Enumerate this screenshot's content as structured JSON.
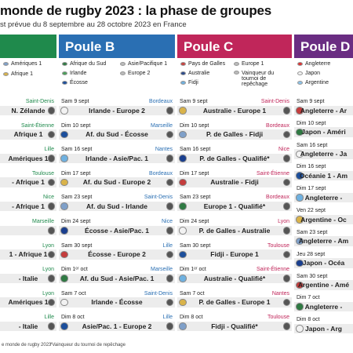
{
  "title": "monde de rugby 2023 : la phase de groupes",
  "subtitle": "st prévue du 8 septembre au 28 octobre 2023 en France",
  "pools": [
    {
      "label": "",
      "color": "#1f8a4c",
      "teams": [
        "Amériques 1",
        "Afrique 1"
      ]
    },
    {
      "label": "Poule B",
      "color": "#2a6fb3",
      "teams": [
        "Afrique du Sud",
        "Asie/Pacifique 1",
        "Irlande",
        "Europe 2",
        "Écosse"
      ]
    },
    {
      "label": "Poule C",
      "color": "#c0265a",
      "teams": [
        "Pays de Galles",
        "Europe 1",
        "Australie",
        "Vainqueur du tournoi de repêchage",
        "Fidji"
      ]
    },
    {
      "label": "Poule D",
      "color": "#6a2d82",
      "teams": [
        "Angleterre",
        "Japon",
        "Argentine"
      ]
    }
  ],
  "columns": [
    {
      "accent": "#1f8a4c",
      "matches": [
        {
          "date": "",
          "venue": "Saint-Denis",
          "label": "N. Zélande"
        },
        {
          "date": "",
          "venue": "Saint-Étienne",
          "label": "Afrique 1"
        },
        {
          "date": "",
          "venue": "Lille",
          "label": "Amériques 1"
        },
        {
          "date": "",
          "venue": "Toulouse",
          "label": "- Afrique 1"
        },
        {
          "date": "",
          "venue": "Nice",
          "label": "- Afrique 1"
        },
        {
          "date": "",
          "venue": "Marseille",
          "label": ""
        },
        {
          "date": "",
          "venue": "Lyon",
          "label": "1 - Afrique 1"
        },
        {
          "date": "",
          "venue": "Lyon",
          "label": "- Italie"
        },
        {
          "date": "",
          "venue": "Lyon",
          "label": "Amériques 1"
        },
        {
          "date": "",
          "venue": "Lille",
          "label": "- Italie"
        }
      ]
    },
    {
      "accent": "#2a6fb3",
      "matches": [
        {
          "date": "Sam 9 sept",
          "venue": "Bordeaux",
          "label": "Irlande - Europe 2"
        },
        {
          "date": "Dim 10 sept",
          "venue": "Marseille",
          "label": "Af. du Sud - Écosse"
        },
        {
          "date": "Sam 16 sept",
          "venue": "Nantes",
          "label": "Irlande - Asie/Pac. 1"
        },
        {
          "date": "Dim 17 sept",
          "venue": "Bordeaux",
          "label": "Af. du Sud - Europe 2"
        },
        {
          "date": "Sam 23 sept",
          "venue": "Saint-Denis",
          "label": "Af. du Sud - Irlande"
        },
        {
          "date": "Dim 24 sept",
          "venue": "Nice",
          "label": "Écosse - Asie/Pac. 1"
        },
        {
          "date": "Sam 30 sept",
          "venue": "Lille",
          "label": "Écosse - Europe 2"
        },
        {
          "date": "Dim 1ᵉʳ oct",
          "venue": "Marseille",
          "label": "Af. du Sud - Asie/Pac. 1"
        },
        {
          "date": "Sam 7 oct",
          "venue": "Saint-Denis",
          "label": "Irlande - Écosse"
        },
        {
          "date": "Dim 8 oct",
          "venue": "Lille",
          "label": "Asie/Pac. 1 - Europe 2"
        }
      ]
    },
    {
      "accent": "#c0265a",
      "matches": [
        {
          "date": "Sam 9 sept",
          "venue": "Saint-Denis",
          "label": "Australie - Europe 1"
        },
        {
          "date": "Dim 10 sept",
          "venue": "Bordeaux",
          "label": "P. de Galles - Fidji"
        },
        {
          "date": "Sam 16 sept",
          "venue": "Nice",
          "label": "P. de Galles - Qualifié*"
        },
        {
          "date": "Dim 17 sept",
          "venue": "Saint-Étienne",
          "label": "Australie - Fidji"
        },
        {
          "date": "Sam 23 sept",
          "venue": "Bordeaux",
          "label": "Europe 1 - Qualifié*"
        },
        {
          "date": "Dim 24 sept",
          "venue": "Lyon",
          "label": "P. de Galles - Australie"
        },
        {
          "date": "Sam 30 sept",
          "venue": "Toulouse",
          "label": "Fidji - Europe 1"
        },
        {
          "date": "Dim 1ᵉʳ oct",
          "venue": "Saint-Étienne",
          "label": "Australie - Qualifié*"
        },
        {
          "date": "Sam 7 oct",
          "venue": "Nantes",
          "label": "P. de Galles - Europe 1"
        },
        {
          "date": "Dim 8 oct",
          "venue": "Toulouse",
          "label": "Fidji - Qualifié*"
        }
      ]
    },
    {
      "accent": "#6a2d82",
      "matches": [
        {
          "date": "Sam 9 sept",
          "venue": "",
          "label": "Angleterre - Ar"
        },
        {
          "date": "Dim 10 sept",
          "venue": "",
          "label": "Japon - Améri"
        },
        {
          "date": "Sam 16 sept",
          "venue": "",
          "label": "Angleterre - Ja"
        },
        {
          "date": "Dim 16 sept",
          "venue": "",
          "label": "Océanie 1 - Am"
        },
        {
          "date": "Dim 17 sept",
          "venue": "",
          "label": "Angleterre -"
        },
        {
          "date": "Ven 22 sept",
          "venue": "",
          "label": "Argentine - Oc"
        },
        {
          "date": "Sam 23 sept",
          "venue": "",
          "label": "Angleterre - Am"
        },
        {
          "date": "Jeu 28 sept",
          "venue": "",
          "label": "Japon - Océa"
        },
        {
          "date": "Sam 30 sept",
          "venue": "",
          "label": "Argentine - Amé"
        },
        {
          "date": "Dim 7 oct",
          "venue": "",
          "label": "Angleterre -"
        },
        {
          "date": "Dim 8 oct",
          "venue": "",
          "label": "Japon - Arg"
        }
      ]
    }
  ],
  "footer": {
    "left": "e monde de rugby 2023",
    "note": "*Vainqueur du tournoi de repêchage"
  }
}
